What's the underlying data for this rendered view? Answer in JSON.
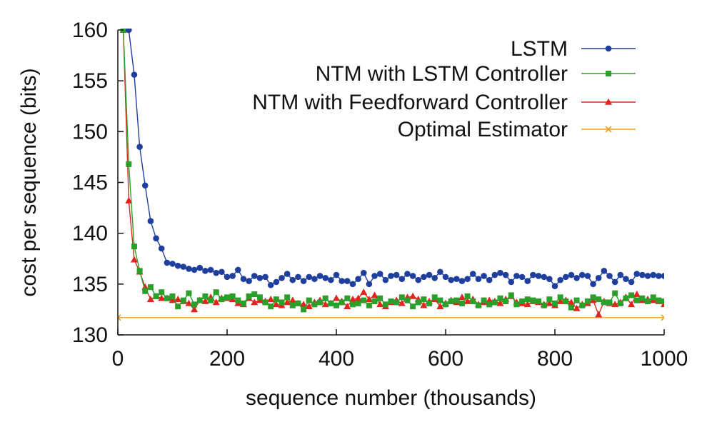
{
  "chart_data": {
    "type": "line",
    "title": "",
    "xlabel": "sequence number (thousands)",
    "ylabel": "cost per sequence (bits)",
    "xlim": [
      0,
      1000
    ],
    "ylim": [
      130,
      160
    ],
    "xticks": [
      0,
      200,
      400,
      600,
      800,
      1000
    ],
    "yticks": [
      130,
      135,
      140,
      145,
      150,
      155,
      160
    ],
    "grid": false,
    "legend_position": "top-right",
    "series": [
      {
        "name": "LSTM",
        "color": "#1f3f9f",
        "marker": "circle",
        "x": [
          20,
          30,
          40,
          50,
          60,
          70,
          80,
          90,
          100,
          110,
          120,
          130,
          140,
          150,
          160,
          170,
          180,
          190,
          200,
          210,
          220,
          230,
          240,
          250,
          260,
          270,
          280,
          290,
          300,
          310,
          320,
          330,
          340,
          350,
          360,
          370,
          380,
          390,
          400,
          410,
          420,
          430,
          440,
          450,
          460,
          470,
          480,
          490,
          500,
          510,
          520,
          530,
          540,
          550,
          560,
          570,
          580,
          590,
          600,
          610,
          620,
          630,
          640,
          650,
          660,
          670,
          680,
          690,
          700,
          710,
          720,
          730,
          740,
          750,
          760,
          770,
          780,
          790,
          800,
          810,
          820,
          830,
          840,
          850,
          860,
          870,
          880,
          890,
          900,
          910,
          920,
          930,
          940,
          950,
          960,
          970,
          980,
          990,
          1000
        ],
        "values": [
          160,
          155.6,
          148.5,
          144.7,
          141.2,
          139.5,
          138.5,
          137.1,
          137.0,
          136.8,
          136.7,
          136.5,
          136.4,
          136.6,
          136.3,
          136.4,
          136.1,
          136.2,
          135.7,
          135.8,
          136.4,
          135.5,
          135.3,
          135.8,
          135.6,
          135.7,
          134.9,
          135.2,
          135.6,
          136.0,
          135.4,
          135.7,
          135.3,
          135.7,
          135.5,
          135.8,
          135.6,
          135.4,
          135.9,
          135.3,
          135.3,
          135.0,
          135.5,
          136.1,
          135.0,
          135.8,
          136.0,
          135.4,
          135.8,
          135.9,
          135.5,
          136.0,
          135.8,
          135.4,
          135.7,
          135.9,
          135.6,
          136.2,
          135.7,
          135.4,
          135.5,
          135.3,
          135.5,
          136.0,
          135.5,
          135.8,
          135.4,
          135.9,
          136.1,
          135.9,
          135.2,
          135.8,
          135.7,
          135.3,
          135.9,
          135.8,
          135.7,
          135.5,
          134.8,
          135.4,
          135.7,
          135.9,
          135.6,
          135.9,
          135.8,
          135.0,
          135.6,
          136.3,
          135.8,
          135.2,
          135.9,
          135.5,
          135.2,
          136.0,
          135.9,
          135.8,
          135.9,
          135.8,
          135.8
        ]
      },
      {
        "name": "NTM with LSTM Controller",
        "color": "#2aa02a",
        "marker": "square",
        "x": [
          10,
          20,
          30,
          40,
          50,
          60,
          70,
          80,
          90,
          100,
          110,
          120,
          130,
          140,
          150,
          160,
          170,
          180,
          190,
          200,
          210,
          220,
          230,
          240,
          250,
          260,
          270,
          280,
          290,
          300,
          310,
          320,
          330,
          340,
          350,
          360,
          370,
          380,
          390,
          400,
          410,
          420,
          430,
          440,
          450,
          460,
          470,
          480,
          490,
          500,
          510,
          520,
          530,
          540,
          550,
          560,
          570,
          580,
          590,
          600,
          610,
          620,
          630,
          640,
          650,
          660,
          670,
          680,
          690,
          700,
          710,
          720,
          730,
          740,
          750,
          760,
          770,
          780,
          790,
          800,
          810,
          820,
          830,
          840,
          850,
          860,
          870,
          880,
          890,
          900,
          910,
          920,
          930,
          940,
          950,
          960,
          970,
          980,
          990,
          1000
        ],
        "values": [
          160,
          146.8,
          138.7,
          136.3,
          134.3,
          134.7,
          133.8,
          134.2,
          133.6,
          133.8,
          132.8,
          133.4,
          134.1,
          133.0,
          133.4,
          133.8,
          133.4,
          134.2,
          133.5,
          133.7,
          133.8,
          133.4,
          133.1,
          133.8,
          134.0,
          133.7,
          133.2,
          132.8,
          133.5,
          133.2,
          133.7,
          132.9,
          133.1,
          132.5,
          133.4,
          133.0,
          133.2,
          133.6,
          133.1,
          132.9,
          133.2,
          133.6,
          133.0,
          133.1,
          133.4,
          132.9,
          133.3,
          133.6,
          133.0,
          133.3,
          133.2,
          133.7,
          133.4,
          132.8,
          133.2,
          133.5,
          133.1,
          133.7,
          133.4,
          133.0,
          133.3,
          133.4,
          133.1,
          133.8,
          133.3,
          132.9,
          133.4,
          133.0,
          133.2,
          133.6,
          133.3,
          133.9,
          133.0,
          133.3,
          133.5,
          133.4,
          133.3,
          132.9,
          133.5,
          133.1,
          133.7,
          133.3,
          132.7,
          133.4,
          132.9,
          133.3,
          133.7,
          133.5,
          133.2,
          133.2,
          134.1,
          133.1,
          133.6,
          133.9,
          133.4,
          133.6,
          133.3,
          133.7,
          133.4,
          133.3
        ]
      },
      {
        "name": "NTM with Feedforward Controller",
        "color": "#e0251c",
        "marker": "triangle",
        "x": [
          10,
          20,
          30,
          40,
          50,
          60,
          70,
          80,
          90,
          100,
          110,
          120,
          130,
          140,
          150,
          160,
          170,
          180,
          190,
          200,
          210,
          220,
          230,
          240,
          250,
          260,
          270,
          280,
          290,
          300,
          310,
          320,
          330,
          340,
          350,
          360,
          370,
          380,
          390,
          400,
          410,
          420,
          430,
          440,
          450,
          460,
          470,
          480,
          490,
          500,
          510,
          520,
          530,
          540,
          550,
          560,
          570,
          580,
          590,
          600,
          610,
          620,
          630,
          640,
          650,
          660,
          670,
          680,
          690,
          700,
          710,
          720,
          730,
          740,
          750,
          760,
          770,
          780,
          790,
          800,
          810,
          820,
          830,
          840,
          850,
          860,
          870,
          880,
          890,
          900,
          910,
          920,
          930,
          940,
          950,
          960,
          970,
          980,
          990,
          1000
        ],
        "values": [
          160,
          143.2,
          137.4,
          136.2,
          134.7,
          133.5,
          133.8,
          133.6,
          133.6,
          133.4,
          133.5,
          133.3,
          133.1,
          132.5,
          133.4,
          133.3,
          133.7,
          133.2,
          133.6,
          133.6,
          133.5,
          133.1,
          133.0,
          133.6,
          133.2,
          133.4,
          133.3,
          133.5,
          133.0,
          132.9,
          133.2,
          133.4,
          133.1,
          133.0,
          132.8,
          133.2,
          133.4,
          133.0,
          133.1,
          133.6,
          133.3,
          132.8,
          133.5,
          133.6,
          134.2,
          133.5,
          133.9,
          133.0,
          132.8,
          133.2,
          133.4,
          133.1,
          133.7,
          133.8,
          133.5,
          132.9,
          133.3,
          133.5,
          132.8,
          133.1,
          133.4,
          133.2,
          133.7,
          133.3,
          133.5,
          133.0,
          133.2,
          133.4,
          133.3,
          133.1,
          133.5,
          133.8,
          133.2,
          133.1,
          133.0,
          133.3,
          133.2,
          133.0,
          133.1,
          132.9,
          133.3,
          133.4,
          133.2,
          132.6,
          133.0,
          133.1,
          133.4,
          132.0,
          133.3,
          133.1,
          133.0,
          133.2,
          133.7,
          133.0,
          134.0,
          133.4,
          133.5,
          133.4,
          133.3,
          133.0
        ]
      },
      {
        "name": "Optimal Estimator",
        "color": "#f0a020",
        "marker": "x",
        "x": [
          0,
          1000
        ],
        "values": [
          131.7,
          131.7
        ]
      }
    ]
  }
}
